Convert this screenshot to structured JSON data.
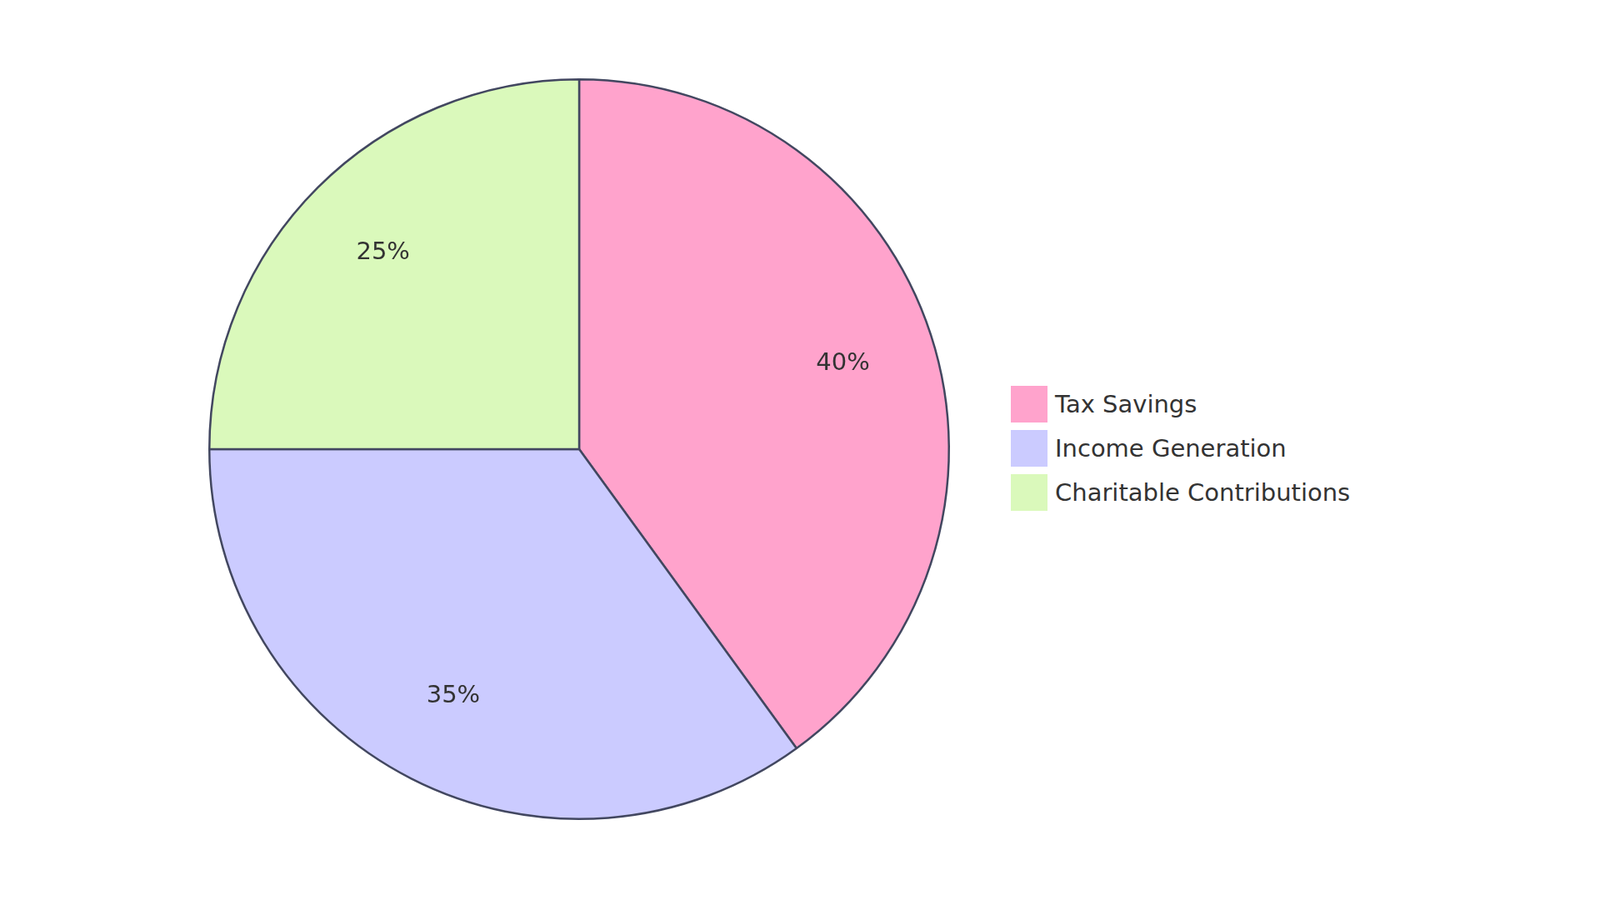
{
  "chart_data": {
    "type": "pie",
    "categories": [
      "Tax Savings",
      "Income Generation",
      "Charitable Contributions"
    ],
    "values": [
      40,
      35,
      25
    ],
    "value_labels": [
      "40%",
      "35%",
      "25%"
    ],
    "colors": [
      "#ffa3cc",
      "#cbcbff",
      "#daf9bb"
    ],
    "data_labels": true,
    "legend": "right"
  }
}
